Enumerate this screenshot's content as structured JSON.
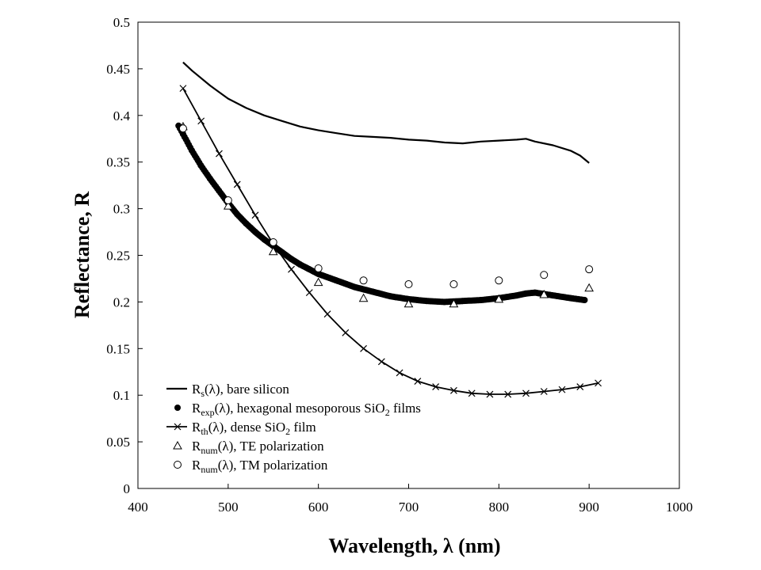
{
  "chart_data": {
    "type": "line",
    "title": "",
    "xlabel": "Wavelength, λ (nm)",
    "ylabel": "Reflectance, R",
    "xlim": [
      400,
      1000
    ],
    "ylim": [
      0,
      0.5
    ],
    "xticks": [
      "400",
      "500",
      "600",
      "700",
      "800",
      "900",
      "1000"
    ],
    "yticks": [
      "0",
      "0.05",
      "0.1",
      "0.15",
      "0.2",
      "0.25",
      "0.3",
      "0.35",
      "0.4",
      "0.45",
      "0.5"
    ],
    "grid": false,
    "legend_position": "bottom-left",
    "series": [
      {
        "name": "Rs(λ), bare silicon",
        "legend": {
          "sym": "R",
          "sub": "s",
          "rest": "(λ), bare silicon"
        },
        "style": "line",
        "x": [
          450,
          460,
          470,
          480,
          490,
          500,
          520,
          540,
          560,
          580,
          600,
          620,
          640,
          660,
          680,
          700,
          720,
          740,
          760,
          780,
          800,
          820,
          830,
          840,
          860,
          880,
          890,
          900
        ],
        "y": [
          0.457,
          0.448,
          0.44,
          0.432,
          0.425,
          0.418,
          0.408,
          0.4,
          0.394,
          0.388,
          0.384,
          0.381,
          0.378,
          0.377,
          0.376,
          0.374,
          0.373,
          0.371,
          0.37,
          0.372,
          0.373,
          0.374,
          0.375,
          0.372,
          0.368,
          0.362,
          0.357,
          0.349
        ]
      },
      {
        "name": "Rexp(λ), hexagonal mesoporous SiO2 films",
        "legend": {
          "sym": "R",
          "sub": "exp",
          "rest": "(λ), hexagonal mesoporous SiO",
          "sub2": "2",
          "rest2": " films"
        },
        "style": "dense-dots",
        "x": [
          445,
          450,
          460,
          470,
          480,
          490,
          500,
          510,
          520,
          530,
          540,
          550,
          560,
          570,
          580,
          590,
          600,
          620,
          640,
          660,
          680,
          700,
          720,
          740,
          760,
          780,
          800,
          820,
          830,
          840,
          860,
          880,
          895
        ],
        "y": [
          0.389,
          0.38,
          0.362,
          0.346,
          0.332,
          0.319,
          0.306,
          0.294,
          0.284,
          0.275,
          0.267,
          0.26,
          0.253,
          0.246,
          0.24,
          0.235,
          0.23,
          0.223,
          0.216,
          0.211,
          0.206,
          0.203,
          0.201,
          0.2,
          0.201,
          0.202,
          0.204,
          0.207,
          0.209,
          0.21,
          0.207,
          0.204,
          0.202
        ]
      },
      {
        "name": "Rth(λ), dense SiO2 film",
        "legend": {
          "sym": "R",
          "sub": "th",
          "rest": "(λ), dense SiO",
          "sub2": "2",
          "rest2": " film"
        },
        "style": "line-x",
        "x": [
          450,
          470,
          490,
          510,
          530,
          550,
          570,
          590,
          610,
          630,
          650,
          670,
          690,
          710,
          730,
          750,
          770,
          790,
          810,
          830,
          850,
          870,
          890,
          910
        ],
        "y": [
          0.429,
          0.394,
          0.359,
          0.326,
          0.293,
          0.262,
          0.235,
          0.21,
          0.187,
          0.167,
          0.15,
          0.136,
          0.124,
          0.115,
          0.109,
          0.105,
          0.102,
          0.101,
          0.101,
          0.102,
          0.104,
          0.106,
          0.109,
          0.113
        ]
      },
      {
        "name": "Rnum(λ), TE polarization",
        "legend": {
          "sym": "R",
          "sub": "num",
          "rest": "(λ), TE polarization"
        },
        "style": "triangle",
        "x": [
          450,
          500,
          550,
          600,
          650,
          700,
          750,
          800,
          850,
          900
        ],
        "y": [
          0.388,
          0.303,
          0.254,
          0.221,
          0.204,
          0.198,
          0.198,
          0.203,
          0.208,
          0.215
        ]
      },
      {
        "name": "Rnum(λ), TM polarization",
        "legend": {
          "sym": "R",
          "sub": "num",
          "rest": "(λ), TM polarization"
        },
        "style": "circle",
        "x": [
          450,
          500,
          550,
          600,
          650,
          700,
          750,
          800,
          850,
          900
        ],
        "y": [
          0.386,
          0.309,
          0.264,
          0.236,
          0.223,
          0.219,
          0.219,
          0.223,
          0.229,
          0.235
        ]
      }
    ]
  }
}
